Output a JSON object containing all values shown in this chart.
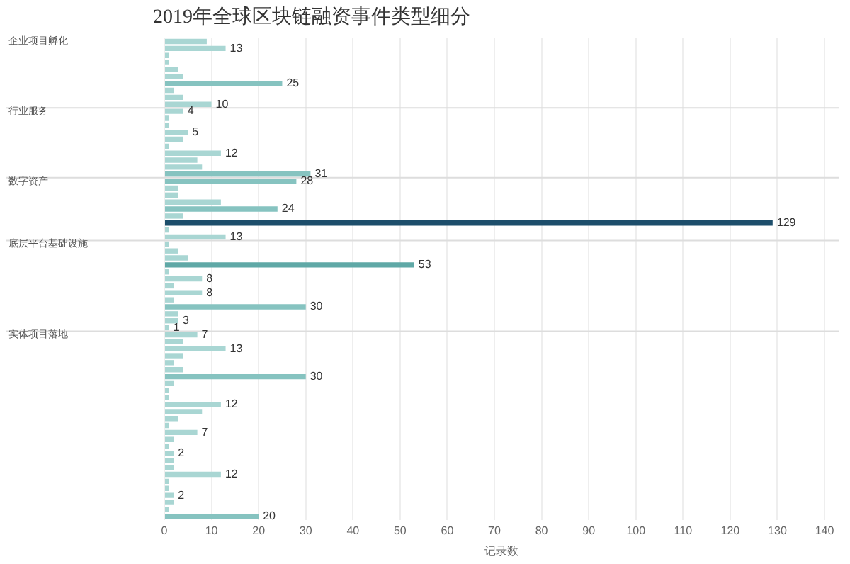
{
  "chart_data": {
    "type": "bar",
    "orientation": "horizontal",
    "title": "2019年全球区块链融资事件类型细分",
    "xlabel": "记录数",
    "categories": [
      null,
      null,
      null,
      null,
      null,
      null,
      null,
      null,
      null,
      null,
      null,
      null,
      null,
      null,
      null,
      null,
      null,
      null,
      null,
      null,
      null,
      null,
      null,
      null,
      null,
      null,
      null,
      null,
      null,
      null,
      null,
      null,
      null,
      null,
      null,
      null,
      null,
      null,
      null,
      null,
      null,
      null,
      null,
      null,
      null,
      null,
      null,
      null,
      null,
      null,
      null,
      null,
      null,
      null,
      null,
      null,
      null,
      null,
      null,
      null,
      null,
      null,
      null,
      null,
      null,
      null,
      null,
      null,
      null
    ],
    "values": [
      9,
      13,
      1,
      1,
      3,
      4,
      25,
      2,
      4,
      10,
      4,
      1,
      1,
      5,
      4,
      1,
      12,
      7,
      8,
      31,
      28,
      3,
      3,
      12,
      24,
      4,
      129,
      1,
      13,
      1,
      3,
      5,
      53,
      1,
      8,
      2,
      8,
      2,
      30,
      3,
      3,
      1,
      7,
      4,
      13,
      4,
      2,
      4,
      30,
      2,
      1,
      1,
      12,
      8,
      3,
      1,
      7,
      2,
      1,
      2,
      2,
      2,
      12,
      1,
      1,
      2,
      2,
      1,
      20
    ],
    "value_labels": [
      null,
      "13",
      null,
      null,
      null,
      null,
      "25",
      null,
      null,
      "10",
      "4",
      null,
      null,
      "5",
      null,
      null,
      "12",
      null,
      null,
      "31",
      "28",
      null,
      null,
      null,
      "24",
      null,
      "129",
      null,
      "13",
      null,
      null,
      null,
      "53",
      null,
      "8",
      null,
      "8",
      null,
      "30",
      null,
      "3",
      "1",
      "7",
      null,
      "13",
      null,
      null,
      null,
      "30",
      null,
      null,
      null,
      "12",
      null,
      null,
      null,
      "7",
      null,
      null,
      "2",
      null,
      null,
      "12",
      null,
      null,
      "2",
      null,
      null,
      "20"
    ],
    "colors": [
      "#a9d6d3",
      "#a9d6d3",
      "#a9d6d3",
      "#a9d6d3",
      "#a9d6d3",
      "#a9d6d3",
      "#86c3c0",
      "#a9d6d3",
      "#a9d6d3",
      "#a9d6d3",
      "#a9d6d3",
      "#a9d6d3",
      "#a9d6d3",
      "#a9d6d3",
      "#a9d6d3",
      "#a9d6d3",
      "#a9d6d3",
      "#a9d6d3",
      "#a9d6d3",
      "#86c3c0",
      "#86c3c0",
      "#a9d6d3",
      "#a9d6d3",
      "#a9d6d3",
      "#86c3c0",
      "#a9d6d3",
      "#1d4e6b",
      "#a9d6d3",
      "#a9d6d3",
      "#a9d6d3",
      "#a9d6d3",
      "#a9d6d3",
      "#5fa8a6",
      "#a9d6d3",
      "#a9d6d3",
      "#a9d6d3",
      "#a9d6d3",
      "#a9d6d3",
      "#86c3c0",
      "#a9d6d3",
      "#a9d6d3",
      "#a9d6d3",
      "#a9d6d3",
      "#a9d6d3",
      "#a9d6d3",
      "#a9d6d3",
      "#a9d6d3",
      "#a9d6d3",
      "#86c3c0",
      "#a9d6d3",
      "#a9d6d3",
      "#a9d6d3",
      "#a9d6d3",
      "#a9d6d3",
      "#a9d6d3",
      "#a9d6d3",
      "#a9d6d3",
      "#a9d6d3",
      "#a9d6d3",
      "#a9d6d3",
      "#a9d6d3",
      "#a9d6d3",
      "#a9d6d3",
      "#a9d6d3",
      "#a9d6d3",
      "#a9d6d3",
      "#a9d6d3",
      "#a9d6d3",
      "#86c3c0"
    ],
    "xlim": [
      0,
      143
    ],
    "xticks": [
      0,
      10,
      20,
      30,
      40,
      50,
      60,
      70,
      80,
      90,
      100,
      110,
      120,
      130,
      140
    ],
    "grid": "x",
    "tick_labels": "x",
    "legend": false,
    "annotations": [
      "企业项目孵化",
      "行业服务",
      "数字资产",
      "底层平台基础设施",
      "实体项目落地"
    ]
  }
}
